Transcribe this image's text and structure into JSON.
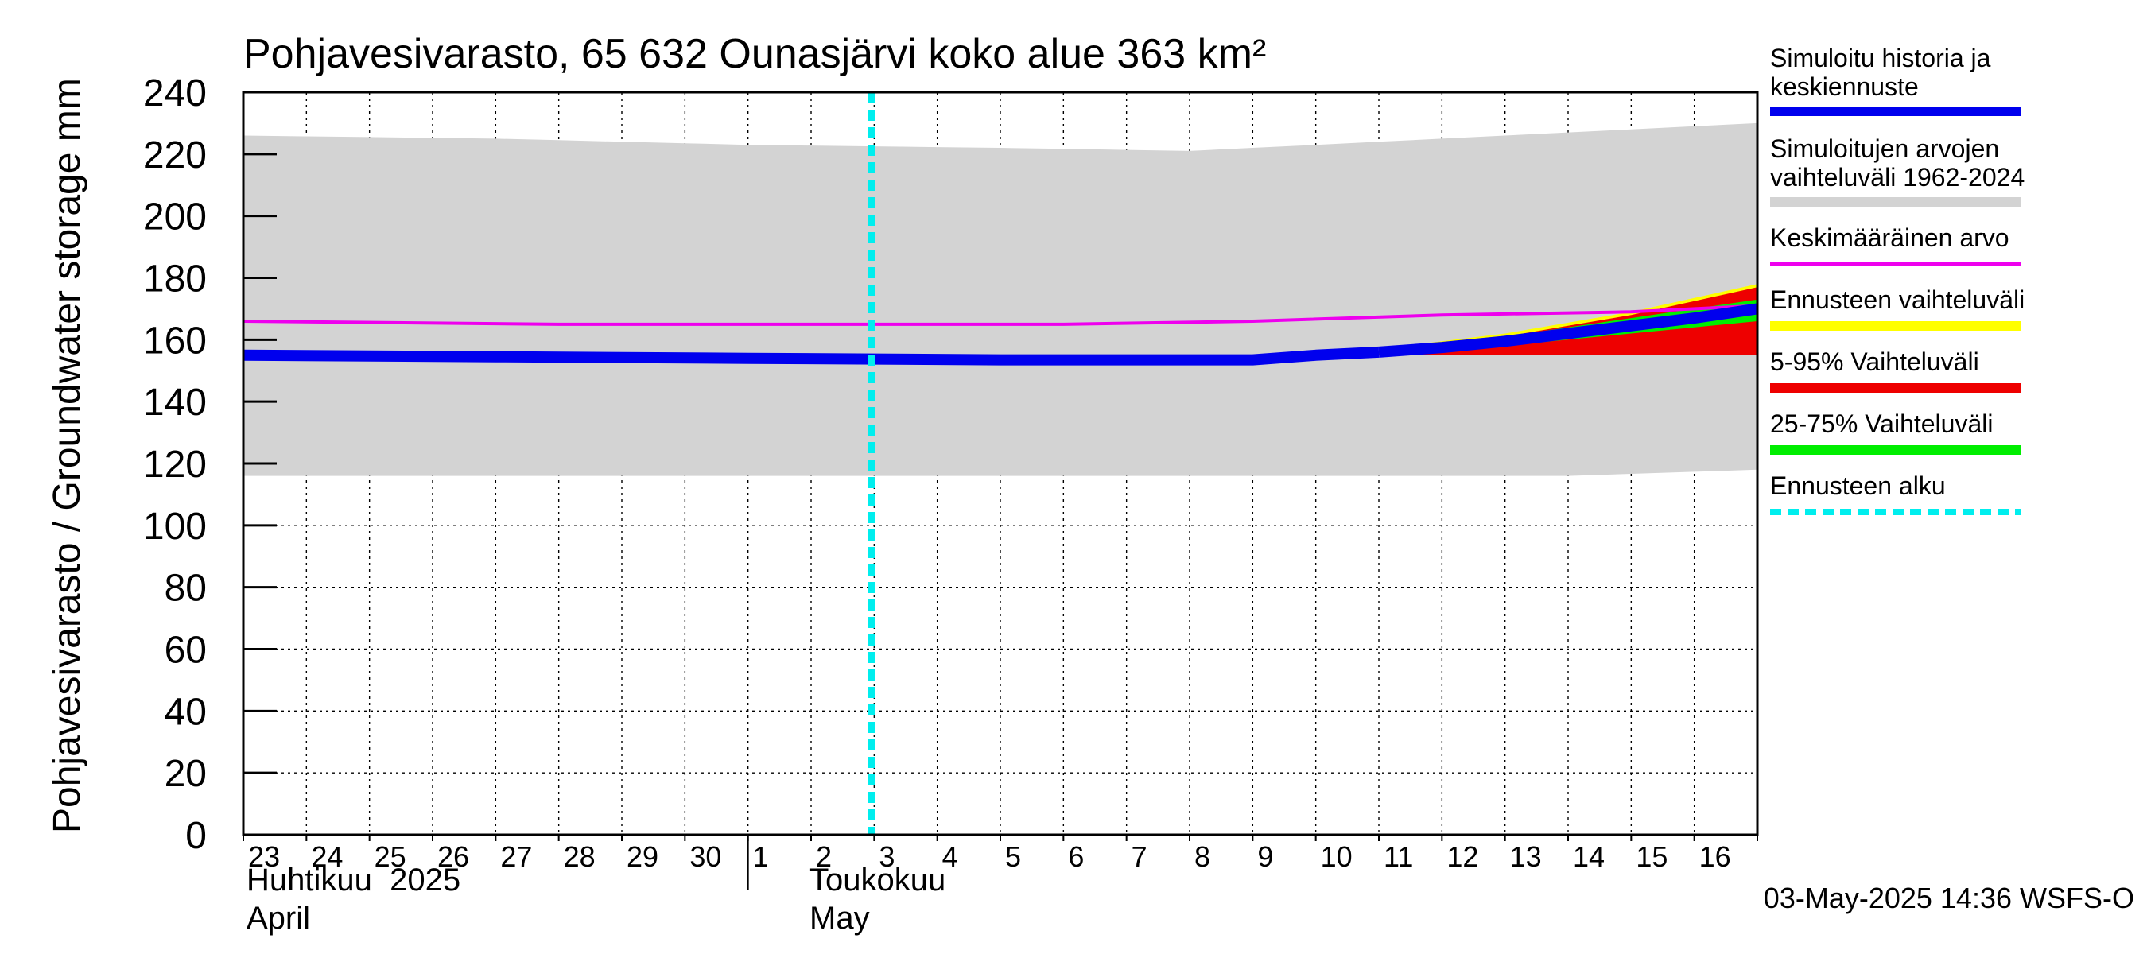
{
  "chart_data": {
    "type": "area",
    "title": "Pohjavesivarasto, 65 632 Ounasjärvi koko alue 363 km²",
    "ylabel": "Pohjavesivarasto / Groundwater storage   mm",
    "ylim": [
      0,
      240
    ],
    "yticks": [
      0,
      20,
      40,
      60,
      80,
      100,
      120,
      140,
      160,
      180,
      200,
      220,
      240
    ],
    "xlim": [
      "2025-04-23",
      "2025-05-17"
    ],
    "x_tick_labels": [
      "23",
      "24",
      "25",
      "26",
      "27",
      "28",
      "29",
      "30",
      "1",
      "2",
      "3",
      "4",
      "5",
      "6",
      "7",
      "8",
      "9",
      "10",
      "11",
      "12",
      "13",
      "14",
      "15",
      "16"
    ],
    "month_labels": [
      {
        "fi": "Huhtikuu  2025",
        "en": "April"
      },
      {
        "fi": "Toukokuu",
        "en": "May"
      }
    ],
    "grid": true,
    "forecast_start": "2025-05-03",
    "timestamp": "03-May-2025 14:36 WSFS-O",
    "colors": {
      "history": "#0000ee",
      "range_hist": "#d3d3d3",
      "mean": "#ee00ee",
      "forecast_range": "#ffff00",
      "p5_95": "#ee0000",
      "p25_75": "#00ee00",
      "forecast_start": "#00eeee"
    },
    "legend": [
      {
        "label": "Simuloitu historia ja keskiennuste",
        "key": "history",
        "style": "thick"
      },
      {
        "label": "Simuloitujen arvojen vaihteluväli 1962-2024",
        "key": "range_hist",
        "style": "thick"
      },
      {
        "label": "Keskimääräinen arvo",
        "key": "mean",
        "style": "thin"
      },
      {
        "label": "Ennusteen vaihteluväli",
        "key": "forecast_range",
        "style": "thick"
      },
      {
        "label": "5-95% Vaihteluväli",
        "key": "p5_95",
        "style": "thick"
      },
      {
        "label": "25-75% Vaihteluväli",
        "key": "p25_75",
        "style": "thick"
      },
      {
        "label": "Ennusteen alku",
        "key": "forecast_start",
        "style": "dashed"
      }
    ],
    "series": {
      "range_hist_upper": {
        "x": [
          "2025-04-23",
          "2025-04-27",
          "2025-05-01",
          "2025-05-05",
          "2025-05-08",
          "2025-05-11",
          "2025-05-14",
          "2025-05-17"
        ],
        "y": [
          226,
          225,
          223,
          222,
          221,
          224,
          227,
          230
        ]
      },
      "range_hist_lower": {
        "x": [
          "2025-04-23",
          "2025-05-01",
          "2025-05-10",
          "2025-05-14",
          "2025-05-17"
        ],
        "y": [
          116,
          116,
          116,
          116,
          118
        ]
      },
      "mean": {
        "x": [
          "2025-04-23",
          "2025-04-28",
          "2025-05-02",
          "2025-05-06",
          "2025-05-09",
          "2025-05-12",
          "2025-05-15",
          "2025-05-17"
        ],
        "y": [
          166,
          165,
          165,
          165,
          166,
          168,
          169,
          171
        ]
      },
      "history": {
        "x": [
          "2025-04-23",
          "2025-04-27",
          "2025-05-01",
          "2025-05-05",
          "2025-05-09",
          "2025-05-10",
          "2025-05-11"
        ],
        "y": [
          155,
          154.5,
          154,
          153.5,
          153.5,
          155,
          156
        ]
      },
      "forecast_median": {
        "x": [
          "2025-05-11",
          "2025-05-12",
          "2025-05-13",
          "2025-05-14",
          "2025-05-15",
          "2025-05-16",
          "2025-05-17"
        ],
        "y": [
          156,
          157.5,
          159.5,
          162,
          164.5,
          167,
          170
        ]
      },
      "forecast_min": {
        "x": [
          "2025-05-11",
          "2025-05-17"
        ],
        "y": [
          155,
          155
        ]
      },
      "forecast_max": {
        "x": [
          "2025-05-11",
          "2025-05-13",
          "2025-05-15",
          "2025-05-17"
        ],
        "y": [
          157,
          162,
          169,
          178
        ]
      },
      "p5": {
        "x": [
          "2025-05-11",
          "2025-05-17"
        ],
        "y": [
          155,
          155
        ]
      },
      "p95": {
        "x": [
          "2025-05-11",
          "2025-05-13",
          "2025-05-15",
          "2025-05-17"
        ],
        "y": [
          157,
          161,
          168,
          177
        ]
      },
      "p25": {
        "x": [
          "2025-05-11",
          "2025-05-12",
          "2025-05-13",
          "2025-05-14",
          "2025-05-15",
          "2025-05-16",
          "2025-05-17"
        ],
        "y": [
          155.5,
          156.5,
          158,
          160,
          162,
          164,
          166
        ]
      },
      "p75": {
        "x": [
          "2025-05-11",
          "2025-05-12",
          "2025-05-13",
          "2025-05-14",
          "2025-05-15",
          "2025-05-16",
          "2025-05-17"
        ],
        "y": [
          157,
          158.5,
          161,
          164,
          167,
          170,
          173
        ]
      }
    }
  }
}
